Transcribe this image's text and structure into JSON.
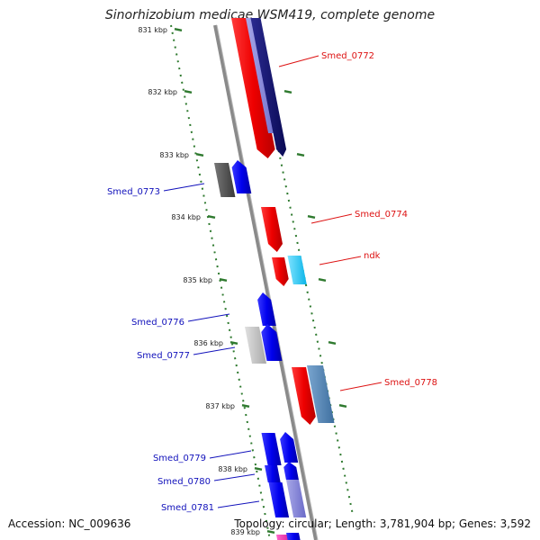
{
  "title": "Sinorhizobium medicae WSM419, complete genome",
  "accession_text": "Accession: NC_009636",
  "summary_text": "Topology: circular; Length: 3,781,904 bp; Genes: 3,592",
  "colors": {
    "forward_label": "#dd1111",
    "reverse_label": "#1111bb",
    "backbone": "#888888",
    "tick": "#2f7a2f"
  },
  "ticks": [
    {
      "label": "831 kbp"
    },
    {
      "label": "832 kbp"
    },
    {
      "label": "833 kbp"
    },
    {
      "label": "834 kbp"
    },
    {
      "label": "835 kbp"
    },
    {
      "label": "836 kbp"
    },
    {
      "label": "837 kbp"
    },
    {
      "label": "838 kbp"
    },
    {
      "label": "839 kbp"
    }
  ],
  "gene_labels": [
    {
      "text": "Smed_0772",
      "strand": "forward"
    },
    {
      "text": "Smed_0773",
      "strand": "reverse"
    },
    {
      "text": "Smed_0774",
      "strand": "forward"
    },
    {
      "text": "ndk",
      "strand": "forward"
    },
    {
      "text": "Smed_0776",
      "strand": "reverse"
    },
    {
      "text": "Smed_0777",
      "strand": "reverse"
    },
    {
      "text": "Smed_0778",
      "strand": "forward"
    },
    {
      "text": "Smed_0779",
      "strand": "reverse"
    },
    {
      "text": "Smed_0780",
      "strand": "reverse"
    },
    {
      "text": "Smed_0781",
      "strand": "reverse"
    }
  ]
}
